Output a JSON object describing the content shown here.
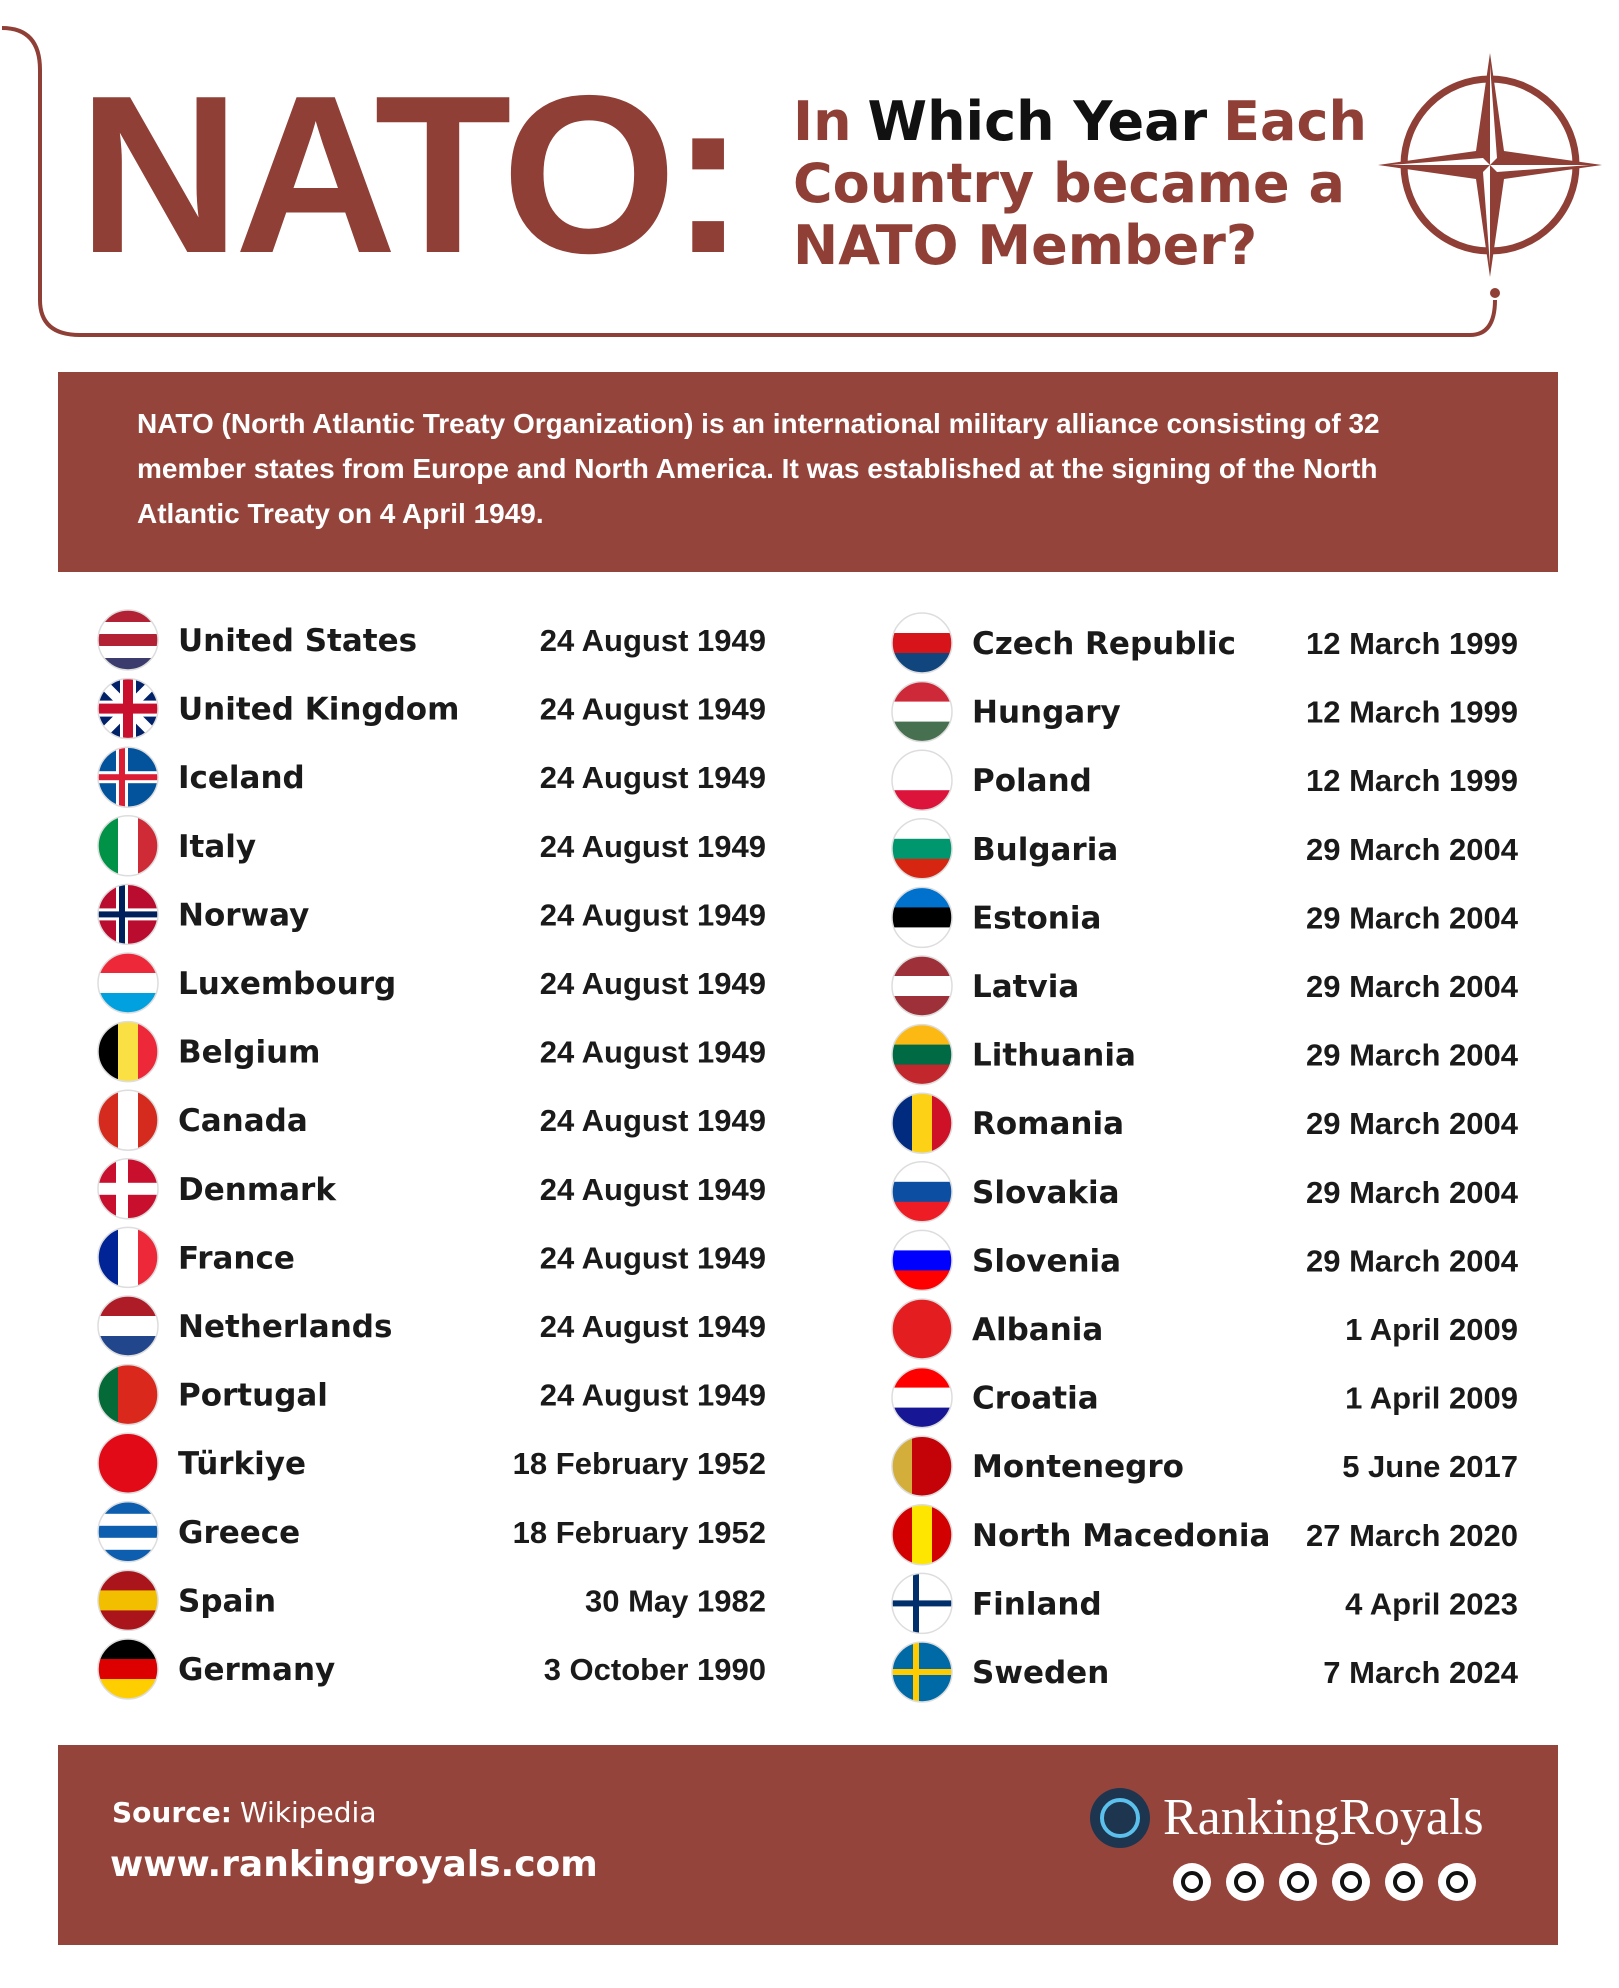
{
  "header": {
    "title": "NATO:",
    "subtitle_lines": [
      [
        {
          "text": "In",
          "color": "#8f3f35"
        },
        {
          "text": "Which Year",
          "color": "#111111"
        },
        {
          "text": "Each",
          "color": "#8f3f35"
        }
      ],
      [
        {
          "text": "Country became a",
          "color": "#8f3f35"
        }
      ],
      [
        {
          "text": "NATO Member?",
          "color": "#8f3f35"
        }
      ]
    ]
  },
  "intro": [
    "NATO (North Atlantic Treaty Organization) is an international military alliance consisting of 32",
    "member states from Europe and North America. It was established at the signing of the North",
    "Atlantic Treaty on 4 April 1949."
  ],
  "countries": {
    "left": [
      [
        "United States",
        "24 August 1949"
      ],
      [
        "United Kingdom",
        "24 August 1949"
      ],
      [
        "Iceland",
        "24 August 1949"
      ],
      [
        "Italy",
        "24 August 1949"
      ],
      [
        "Norway",
        "24 August 1949"
      ],
      [
        "Luxembourg",
        "24 August 1949"
      ],
      [
        "Belgium",
        "24 August 1949"
      ],
      [
        "Canada",
        "24 August 1949"
      ],
      [
        "Denmark",
        "24 August 1949"
      ],
      [
        "France",
        "24 August 1949"
      ],
      [
        "Netherlands",
        "24 August 1949"
      ],
      [
        "Portugal",
        "24 August 1949"
      ],
      [
        "Türkiye",
        "18 February 1952"
      ],
      [
        "Greece",
        "18 February 1952"
      ],
      [
        "Spain",
        "30 May 1982"
      ],
      [
        "Germany",
        "3 October 1990"
      ]
    ],
    "right": [
      [
        "Czech Republic",
        "12 March 1999"
      ],
      [
        "Hungary",
        "12 March 1999"
      ],
      [
        "Poland",
        "12 March 1999"
      ],
      [
        "Bulgaria",
        "29 March 2004"
      ],
      [
        "Estonia",
        "29 March 2004"
      ],
      [
        "Latvia",
        "29 March 2004"
      ],
      [
        "Lithuania",
        "29 March 2004"
      ],
      [
        "Romania",
        "29 March 2004"
      ],
      [
        "Slovakia",
        "29 March 2004"
      ],
      [
        "Slovenia",
        "29 March 2004"
      ],
      [
        "Albania",
        "1 April 2009"
      ],
      [
        "Croatia",
        "1 April 2009"
      ],
      [
        "Montenegro",
        "5 June 2017"
      ],
      [
        "North Macedonia",
        "27 March 2020"
      ],
      [
        "Finland",
        "4 April 2023"
      ],
      [
        "Sweden",
        "7 March 2024"
      ]
    ]
  },
  "footer": {
    "source_label": "Source:",
    "source": "Wikipedia",
    "website": "www.rankingroyals.com",
    "brand": "RankingRoyals"
  }
}
